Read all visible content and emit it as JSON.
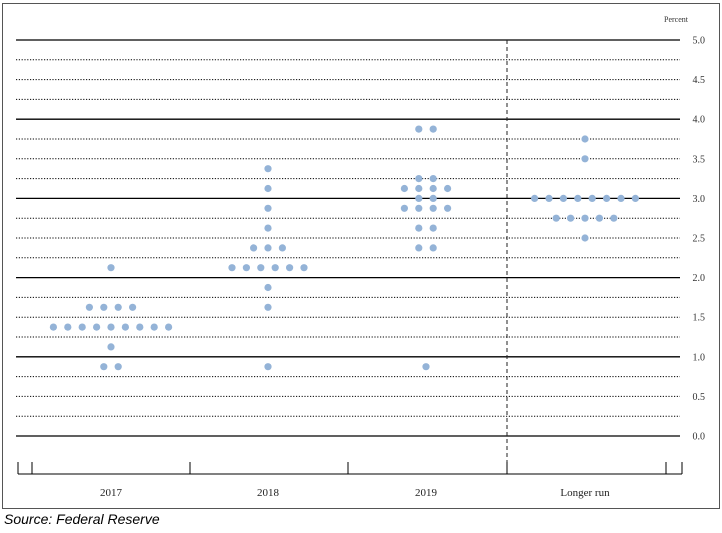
{
  "chart_data": {
    "type": "scatter",
    "title": "",
    "unit_label": "Percent",
    "xlabel": "",
    "ylabel": "",
    "categories": [
      "2017",
      "2018",
      "2019",
      "Longer run"
    ],
    "ylim": [
      0,
      5
    ],
    "y_ticks": [
      "0.0",
      "0.5",
      "1.0",
      "1.5",
      "2.0",
      "2.5",
      "3.0",
      "3.5",
      "4.0",
      "4.5",
      "5.0"
    ],
    "grid": true,
    "longer_run_separator": true,
    "dot_color": "#94b3d7",
    "dots": [
      {
        "category": "2017",
        "rows": [
          {
            "y": 2.125,
            "count": 1
          },
          {
            "y": 1.625,
            "count": 4
          },
          {
            "y": 1.375,
            "count": 9
          },
          {
            "y": 1.125,
            "count": 1
          },
          {
            "y": 0.875,
            "count": 2
          }
        ]
      },
      {
        "category": "2018",
        "rows": [
          {
            "y": 3.375,
            "count": 1
          },
          {
            "y": 3.125,
            "count": 1
          },
          {
            "y": 2.875,
            "count": 1
          },
          {
            "y": 2.625,
            "count": 1
          },
          {
            "y": 2.375,
            "count": 3
          },
          {
            "y": 2.125,
            "count": 6
          },
          {
            "y": 1.875,
            "count": 1
          },
          {
            "y": 1.625,
            "count": 1
          },
          {
            "y": 0.875,
            "count": 1
          }
        ]
      },
      {
        "category": "2019",
        "rows": [
          {
            "y": 3.875,
            "count": 2
          },
          {
            "y": 3.25,
            "count": 2
          },
          {
            "y": 3.125,
            "count": 4
          },
          {
            "y": 3.0,
            "count": 2
          },
          {
            "y": 2.875,
            "count": 4
          },
          {
            "y": 2.625,
            "count": 2
          },
          {
            "y": 2.375,
            "count": 2
          },
          {
            "y": 0.875,
            "count": 1
          }
        ]
      },
      {
        "category": "Longer run",
        "rows": [
          {
            "y": 3.75,
            "count": 1
          },
          {
            "y": 3.5,
            "count": 1
          },
          {
            "y": 3.0,
            "count": 8
          },
          {
            "y": 2.75,
            "count": 5
          },
          {
            "y": 2.5,
            "count": 1
          }
        ]
      }
    ]
  },
  "source_note": "Source: Federal Reserve"
}
